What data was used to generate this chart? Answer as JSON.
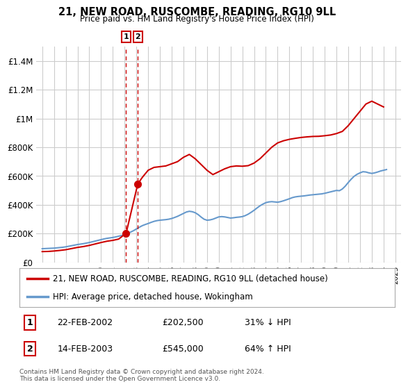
{
  "title": "21, NEW ROAD, RUSCOMBE, READING, RG10 9LL",
  "subtitle": "Price paid vs. HM Land Registry's House Price Index (HPI)",
  "ylim": [
    0,
    1500000
  ],
  "yticks": [
    0,
    200000,
    400000,
    600000,
    800000,
    1000000,
    1200000,
    1400000
  ],
  "ytick_labels": [
    "£0",
    "£200K",
    "£400K",
    "£600K",
    "£800K",
    "£1M",
    "£1.2M",
    "£1.4M"
  ],
  "legend1_label": "21, NEW ROAD, RUSCOMBE, READING, RG10 9LL (detached house)",
  "legend2_label": "HPI: Average price, detached house, Wokingham",
  "sale1_date": 2002.13,
  "sale1_price": 202500,
  "sale1_label": "1",
  "sale2_date": 2003.12,
  "sale2_price": 545000,
  "sale2_label": "2",
  "footer": "Contains HM Land Registry data © Crown copyright and database right 2024.\nThis data is licensed under the Open Government Licence v3.0.",
  "line1_color": "#cc0000",
  "line2_color": "#6699cc",
  "marker_color": "#cc0000",
  "vline_color": "#cc0000",
  "background_color": "#ffffff",
  "grid_color": "#cccccc",
  "xtick_years": [
    1995,
    1996,
    1997,
    1998,
    1999,
    2000,
    2001,
    2002,
    2003,
    2004,
    2005,
    2006,
    2007,
    2008,
    2009,
    2010,
    2011,
    2012,
    2013,
    2014,
    2015,
    2016,
    2017,
    2018,
    2019,
    2020,
    2021,
    2022,
    2023,
    2024,
    2025
  ],
  "hpi_x": [
    1995.0,
    1995.25,
    1995.5,
    1995.75,
    1996.0,
    1996.25,
    1996.5,
    1996.75,
    1997.0,
    1997.25,
    1997.5,
    1997.75,
    1998.0,
    1998.25,
    1998.5,
    1998.75,
    1999.0,
    1999.25,
    1999.5,
    1999.75,
    2000.0,
    2000.25,
    2000.5,
    2000.75,
    2001.0,
    2001.25,
    2001.5,
    2001.75,
    2002.0,
    2002.25,
    2002.5,
    2002.75,
    2003.0,
    2003.25,
    2003.5,
    2003.75,
    2004.0,
    2004.25,
    2004.5,
    2004.75,
    2005.0,
    2005.25,
    2005.5,
    2005.75,
    2006.0,
    2006.25,
    2006.5,
    2006.75,
    2007.0,
    2007.25,
    2007.5,
    2007.75,
    2008.0,
    2008.25,
    2008.5,
    2008.75,
    2009.0,
    2009.25,
    2009.5,
    2009.75,
    2010.0,
    2010.25,
    2010.5,
    2010.75,
    2011.0,
    2011.25,
    2011.5,
    2011.75,
    2012.0,
    2012.25,
    2012.5,
    2012.75,
    2013.0,
    2013.25,
    2013.5,
    2013.75,
    2014.0,
    2014.25,
    2014.5,
    2014.75,
    2015.0,
    2015.25,
    2015.5,
    2015.75,
    2016.0,
    2016.25,
    2016.5,
    2016.75,
    2017.0,
    2017.25,
    2017.5,
    2017.75,
    2018.0,
    2018.25,
    2018.5,
    2018.75,
    2019.0,
    2019.25,
    2019.5,
    2019.75,
    2020.0,
    2020.25,
    2020.5,
    2020.75,
    2021.0,
    2021.25,
    2021.5,
    2021.75,
    2022.0,
    2022.25,
    2022.5,
    2022.75,
    2023.0,
    2023.25,
    2023.5,
    2023.75,
    2024.0,
    2024.25
  ],
  "hpi_y": [
    95000,
    96000,
    97000,
    98000,
    99000,
    101000,
    103000,
    105000,
    108000,
    112000,
    116000,
    120000,
    124000,
    127000,
    130000,
    134000,
    138000,
    143000,
    148000,
    153000,
    158000,
    163000,
    167000,
    170000,
    173000,
    177000,
    182000,
    187000,
    192000,
    200000,
    210000,
    220000,
    232000,
    244000,
    255000,
    263000,
    270000,
    278000,
    285000,
    290000,
    293000,
    295000,
    297000,
    300000,
    305000,
    312000,
    320000,
    330000,
    340000,
    350000,
    355000,
    352000,
    345000,
    332000,
    315000,
    300000,
    293000,
    295000,
    300000,
    308000,
    316000,
    318000,
    316000,
    312000,
    308000,
    310000,
    313000,
    315000,
    318000,
    325000,
    335000,
    348000,
    362000,
    378000,
    393000,
    405000,
    415000,
    420000,
    422000,
    420000,
    418000,
    422000,
    428000,
    435000,
    442000,
    450000,
    455000,
    458000,
    460000,
    462000,
    465000,
    468000,
    470000,
    472000,
    474000,
    476000,
    480000,
    485000,
    490000,
    495000,
    500000,
    498000,
    510000,
    530000,
    555000,
    578000,
    598000,
    612000,
    622000,
    630000,
    628000,
    622000,
    618000,
    622000,
    628000,
    635000,
    640000,
    645000
  ],
  "house_x": [
    1995.0,
    1995.5,
    1996.0,
    1996.5,
    1997.0,
    1997.5,
    1998.0,
    1998.5,
    1999.0,
    1999.5,
    2000.0,
    2000.5,
    2001.0,
    2001.5,
    2002.13,
    2003.12,
    2003.5,
    2004.0,
    2004.5,
    2005.0,
    2005.5,
    2006.0,
    2006.5,
    2007.0,
    2007.5,
    2008.0,
    2008.5,
    2009.0,
    2009.5,
    2010.0,
    2010.5,
    2011.0,
    2011.5,
    2012.0,
    2012.5,
    2013.0,
    2013.5,
    2014.0,
    2014.5,
    2015.0,
    2015.5,
    2016.0,
    2016.5,
    2017.0,
    2017.5,
    2018.0,
    2018.5,
    2019.0,
    2019.5,
    2020.0,
    2020.5,
    2021.0,
    2021.5,
    2022.0,
    2022.5,
    2023.0,
    2023.5,
    2024.0
  ],
  "house_y": [
    75000,
    76000,
    79000,
    83000,
    88000,
    96000,
    104000,
    110000,
    118000,
    128000,
    138000,
    147000,
    153000,
    162000,
    202500,
    545000,
    590000,
    640000,
    660000,
    665000,
    670000,
    685000,
    700000,
    730000,
    750000,
    720000,
    680000,
    640000,
    610000,
    630000,
    650000,
    665000,
    670000,
    668000,
    672000,
    690000,
    720000,
    760000,
    800000,
    830000,
    845000,
    855000,
    862000,
    868000,
    872000,
    875000,
    876000,
    880000,
    885000,
    895000,
    910000,
    950000,
    1000000,
    1050000,
    1100000,
    1120000,
    1100000,
    1080000
  ]
}
